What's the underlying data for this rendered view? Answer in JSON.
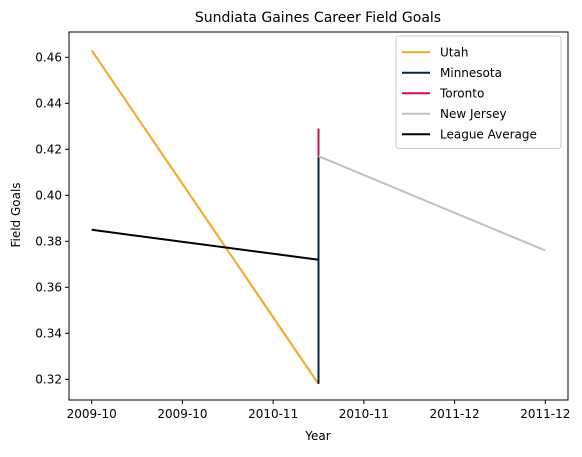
{
  "chart_data": {
    "type": "line",
    "title": "Sundiata Gaines Career Field Goals",
    "xlabel": "Year",
    "ylabel": "Field Goals",
    "grid": false,
    "legend_position": "top-right",
    "xlim": [
      -0.05,
      1.05
    ],
    "ylim": [
      0.311,
      0.471
    ],
    "x_ticks": [
      {
        "value": 0.0,
        "label": "2009-10"
      },
      {
        "value": 0.2,
        "label": "2009-10"
      },
      {
        "value": 0.4,
        "label": "2010-11"
      },
      {
        "value": 0.6,
        "label": "2010-11"
      },
      {
        "value": 0.8,
        "label": "2011-12"
      },
      {
        "value": 1.0,
        "label": "2011-12"
      }
    ],
    "y_ticks": [
      {
        "value": 0.32,
        "label": "0.32"
      },
      {
        "value": 0.34,
        "label": "0.34"
      },
      {
        "value": 0.36,
        "label": "0.36"
      },
      {
        "value": 0.38,
        "label": "0.38"
      },
      {
        "value": 0.4,
        "label": "0.40"
      },
      {
        "value": 0.42,
        "label": "0.42"
      },
      {
        "value": 0.44,
        "label": "0.44"
      },
      {
        "value": 0.46,
        "label": "0.46"
      }
    ],
    "series": [
      {
        "name": "Utah",
        "color": "#F5A623",
        "points": [
          {
            "x": 0.0,
            "y": 0.463
          },
          {
            "x": 0.5,
            "y": 0.318
          }
        ]
      },
      {
        "name": "Minnesota",
        "color": "#0C2340",
        "points": [
          {
            "x": 0.5,
            "y": 0.318
          },
          {
            "x": 0.5,
            "y": 0.417
          }
        ]
      },
      {
        "name": "Toronto",
        "color": "#CE1141",
        "points": [
          {
            "x": 0.5,
            "y": 0.417
          },
          {
            "x": 0.5,
            "y": 0.429
          }
        ]
      },
      {
        "name": "New Jersey",
        "color": "#BFBFBF",
        "points": [
          {
            "x": 0.5,
            "y": 0.417
          },
          {
            "x": 1.0,
            "y": 0.376
          }
        ]
      },
      {
        "name": "League Average",
        "color": "#000000",
        "points": [
          {
            "x": 0.0,
            "y": 0.385
          },
          {
            "x": 0.5,
            "y": 0.372
          }
        ]
      }
    ]
  }
}
